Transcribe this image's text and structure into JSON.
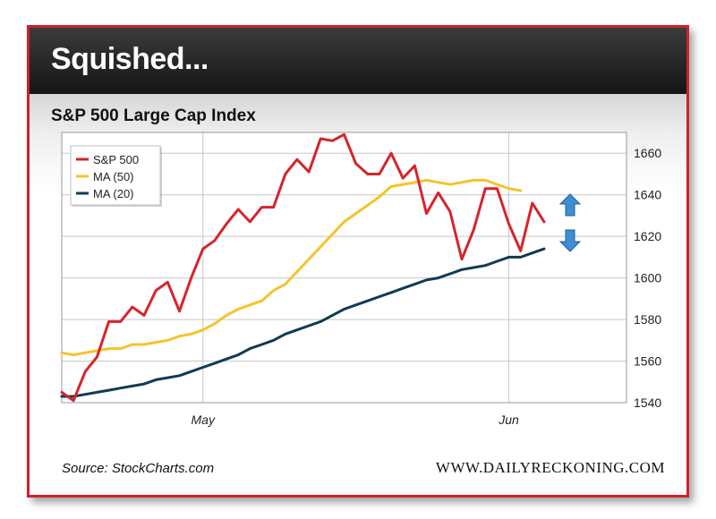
{
  "header": {
    "title": "Squished..."
  },
  "source": "Source: StockCharts.com",
  "brand": "WWW.DAILYRECKONING.COM",
  "chart_data": {
    "type": "line",
    "title": "S&P 500 Large Cap Index",
    "ylim": [
      1540,
      1670
    ],
    "yticks": [
      1540,
      1560,
      1580,
      1600,
      1620,
      1640,
      1660
    ],
    "xtick_labels": [
      {
        "label": "May",
        "index": 12
      },
      {
        "label": "Jun",
        "index": 38
      }
    ],
    "n_points": 49,
    "grid": true,
    "legend": "top-left",
    "series": [
      {
        "name": "S&P 500",
        "color": "#d5252b",
        "values": [
          1545,
          1541,
          1555,
          1562,
          1579,
          1579,
          1586,
          1582,
          1594,
          1598,
          1584,
          1600,
          1614,
          1618,
          1626,
          1633,
          1627,
          1634,
          1634,
          1650,
          1657,
          1651,
          1667,
          1666,
          1669,
          1655,
          1650,
          1650,
          1660,
          1648,
          1654,
          1631,
          1641,
          1632,
          1609,
          1623,
          1643,
          1643,
          1626,
          1613,
          1636,
          1627
        ]
      },
      {
        "name": "MA (50)",
        "color": "#f4c42c",
        "values": [
          1564,
          1563,
          1564,
          1565,
          1566,
          1566,
          1568,
          1568,
          1569,
          1570,
          1572,
          1573,
          1575,
          1578,
          1582,
          1585,
          1587,
          1589,
          1594,
          1597,
          1603,
          1609,
          1615,
          1621,
          1627,
          1631,
          1635,
          1639,
          1644,
          1645,
          1646,
          1647,
          1646,
          1645,
          1646,
          1647,
          1647,
          1645,
          1643,
          1642
        ]
      },
      {
        "name": "MA (20)",
        "color": "#123a52",
        "values": [
          1543,
          1543,
          1544,
          1545,
          1546,
          1547,
          1548,
          1549,
          1551,
          1552,
          1553,
          1555,
          1557,
          1559,
          1561,
          1563,
          1566,
          1568,
          1570,
          1573,
          1575,
          1577,
          1579,
          1582,
          1585,
          1587,
          1589,
          1591,
          1593,
          1595,
          1597,
          1599,
          1600,
          1602,
          1604,
          1605,
          1606,
          1608,
          1610,
          1610,
          1612,
          1614
        ]
      }
    ],
    "annotations": [
      "up-arrow",
      "down-arrow"
    ]
  }
}
